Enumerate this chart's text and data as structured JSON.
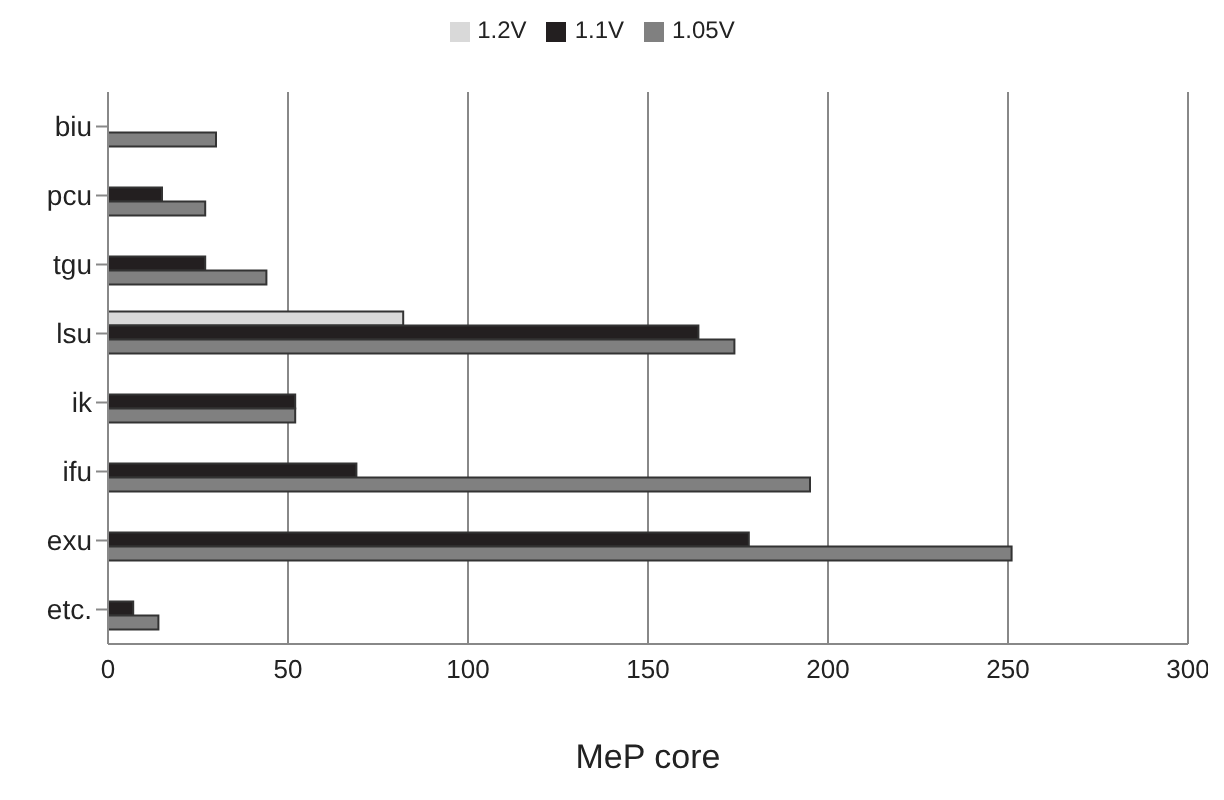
{
  "chart_data": {
    "type": "bar",
    "orientation": "horizontal",
    "xlabel": "MeP core",
    "categories": [
      "biu",
      "pcu",
      "tgu",
      "lsu",
      "ik",
      "ifu",
      "exu",
      "etc."
    ],
    "series": [
      {
        "name": "1.2V",
        "color": "#d9d9d9",
        "values": [
          null,
          null,
          null,
          82,
          null,
          null,
          null,
          null
        ]
      },
      {
        "name": "1.1V",
        "color": "#231f20",
        "values": [
          null,
          15,
          27,
          164,
          52,
          69,
          178,
          7
        ]
      },
      {
        "name": "1.05V",
        "color": "#808080",
        "values": [
          30,
          27,
          44,
          174,
          52,
          195,
          251,
          14
        ]
      }
    ],
    "xlim": [
      0,
      300
    ],
    "xticks": [
      0,
      50,
      100,
      150,
      200,
      250,
      300
    ],
    "grid": "x",
    "legend": "top"
  }
}
